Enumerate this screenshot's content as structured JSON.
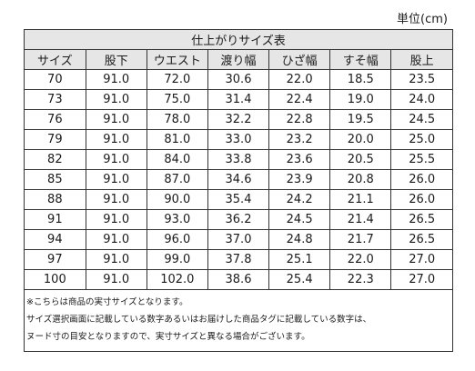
{
  "unit_label": "単位(cm)",
  "table": {
    "title": "仕上がりサイズ表",
    "headers": [
      "サイズ",
      "股下",
      "ウエスト",
      "渡り幅",
      "ひざ幅",
      "すそ幅",
      "股上"
    ],
    "rows": [
      [
        "70",
        "91.0",
        "72.0",
        "30.6",
        "22.0",
        "18.5",
        "23.5"
      ],
      [
        "73",
        "91.0",
        "75.0",
        "31.4",
        "22.4",
        "19.0",
        "24.0"
      ],
      [
        "76",
        "91.0",
        "78.0",
        "32.2",
        "22.8",
        "19.5",
        "24.5"
      ],
      [
        "79",
        "91.0",
        "81.0",
        "33.0",
        "23.2",
        "20.0",
        "25.0"
      ],
      [
        "82",
        "91.0",
        "84.0",
        "33.8",
        "23.6",
        "20.5",
        "25.5"
      ],
      [
        "85",
        "91.0",
        "87.0",
        "34.6",
        "23.9",
        "20.8",
        "26.0"
      ],
      [
        "88",
        "91.0",
        "90.0",
        "35.4",
        "24.2",
        "21.1",
        "26.0"
      ],
      [
        "91",
        "91.0",
        "93.0",
        "36.2",
        "24.5",
        "21.4",
        "26.5"
      ],
      [
        "94",
        "91.0",
        "96.0",
        "37.0",
        "24.8",
        "21.7",
        "26.5"
      ],
      [
        "97",
        "91.0",
        "99.0",
        "37.8",
        "25.1",
        "22.0",
        "27.0"
      ],
      [
        "100",
        "91.0",
        "102.0",
        "38.6",
        "25.4",
        "22.3",
        "27.0"
      ]
    ]
  },
  "notes": [
    "※こちらは商品の実寸サイズとなります。",
    "サイズ選択画面に記載している数字あるいはお届けした商品タグに記載している数字は、",
    "ヌード寸の目安となりますので、実寸サイズと異なる場合がございます。"
  ]
}
